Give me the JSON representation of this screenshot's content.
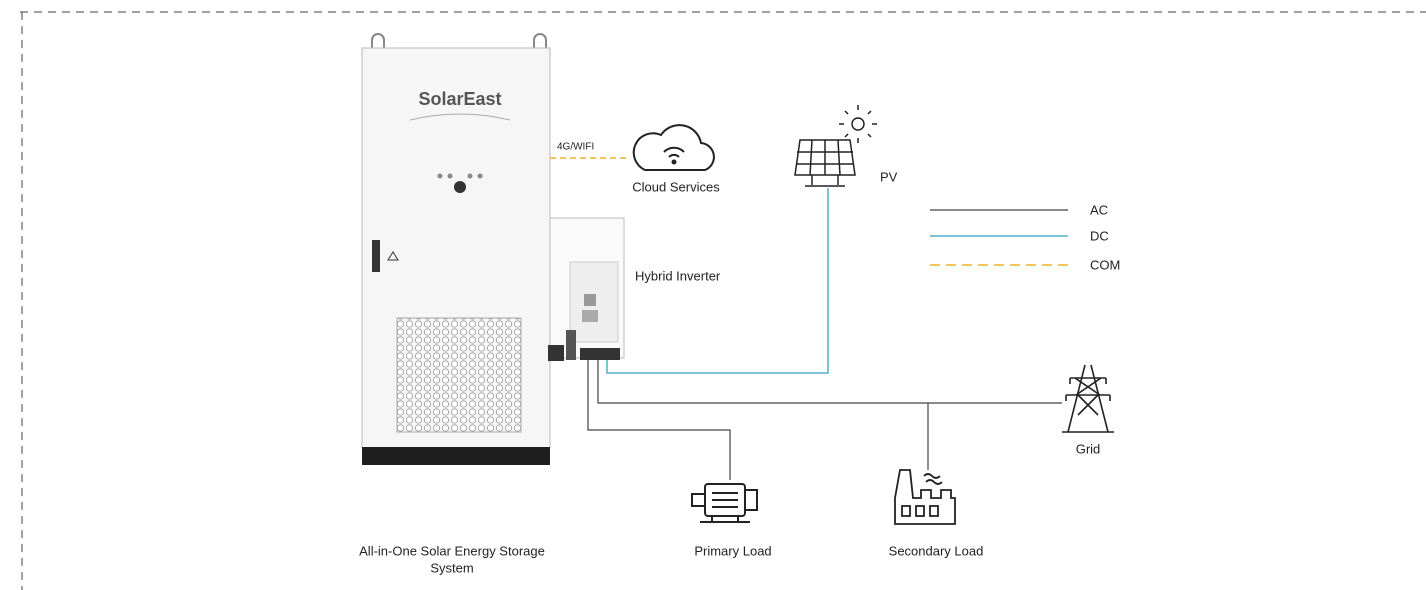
{
  "system": {
    "logo": "SolarEast",
    "label_lines": [
      "All-in-One Solar Energy Storage",
      "System"
    ]
  },
  "link": "4G/WIFI",
  "nodes": [
    {
      "label": "Cloud Services"
    },
    {
      "label": "PV"
    },
    {
      "label": "Hybrid Inverter"
    },
    {
      "label": "Grid"
    },
    {
      "label": "Primary Load"
    },
    {
      "label": "Secondary Load"
    }
  ],
  "legend": [
    {
      "label": "AC"
    },
    {
      "label": "DC"
    },
    {
      "label": "COM"
    }
  ]
}
